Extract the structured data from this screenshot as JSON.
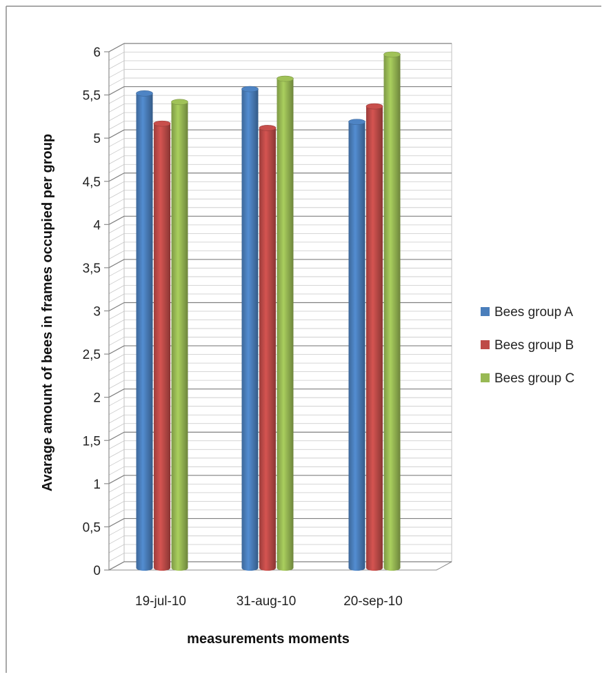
{
  "chart_data": {
    "type": "bar",
    "title": "",
    "xlabel": "measurements moments",
    "ylabel": "Avarage amount of bees in frames occupied per group",
    "categories": [
      "19-jul-10",
      "31-aug-10",
      "20-sep-10"
    ],
    "series": [
      {
        "name": "Bees group A",
        "values": [
          5.55,
          5.6,
          5.22
        ],
        "color": "#4a7ebb"
      },
      {
        "name": "Bees group B",
        "values": [
          5.2,
          5.15,
          5.4
        ],
        "color": "#be4b48"
      },
      {
        "name": "Bees group C",
        "values": [
          5.45,
          5.72,
          6.0
        ],
        "color": "#98b954"
      }
    ],
    "ylim": [
      0,
      6
    ],
    "yticks": [
      0,
      0.5,
      1,
      1.5,
      2,
      2.5,
      3,
      3.5,
      4,
      4.5,
      5,
      5.5,
      6
    ],
    "ytick_labels": [
      "0",
      "0,5",
      "1",
      "1,5",
      "2",
      "2,5",
      "3",
      "3,5",
      "4",
      "4,5",
      "5",
      "5,5",
      "6"
    ],
    "grid": true,
    "legend_position": "right",
    "projection": "3d"
  }
}
